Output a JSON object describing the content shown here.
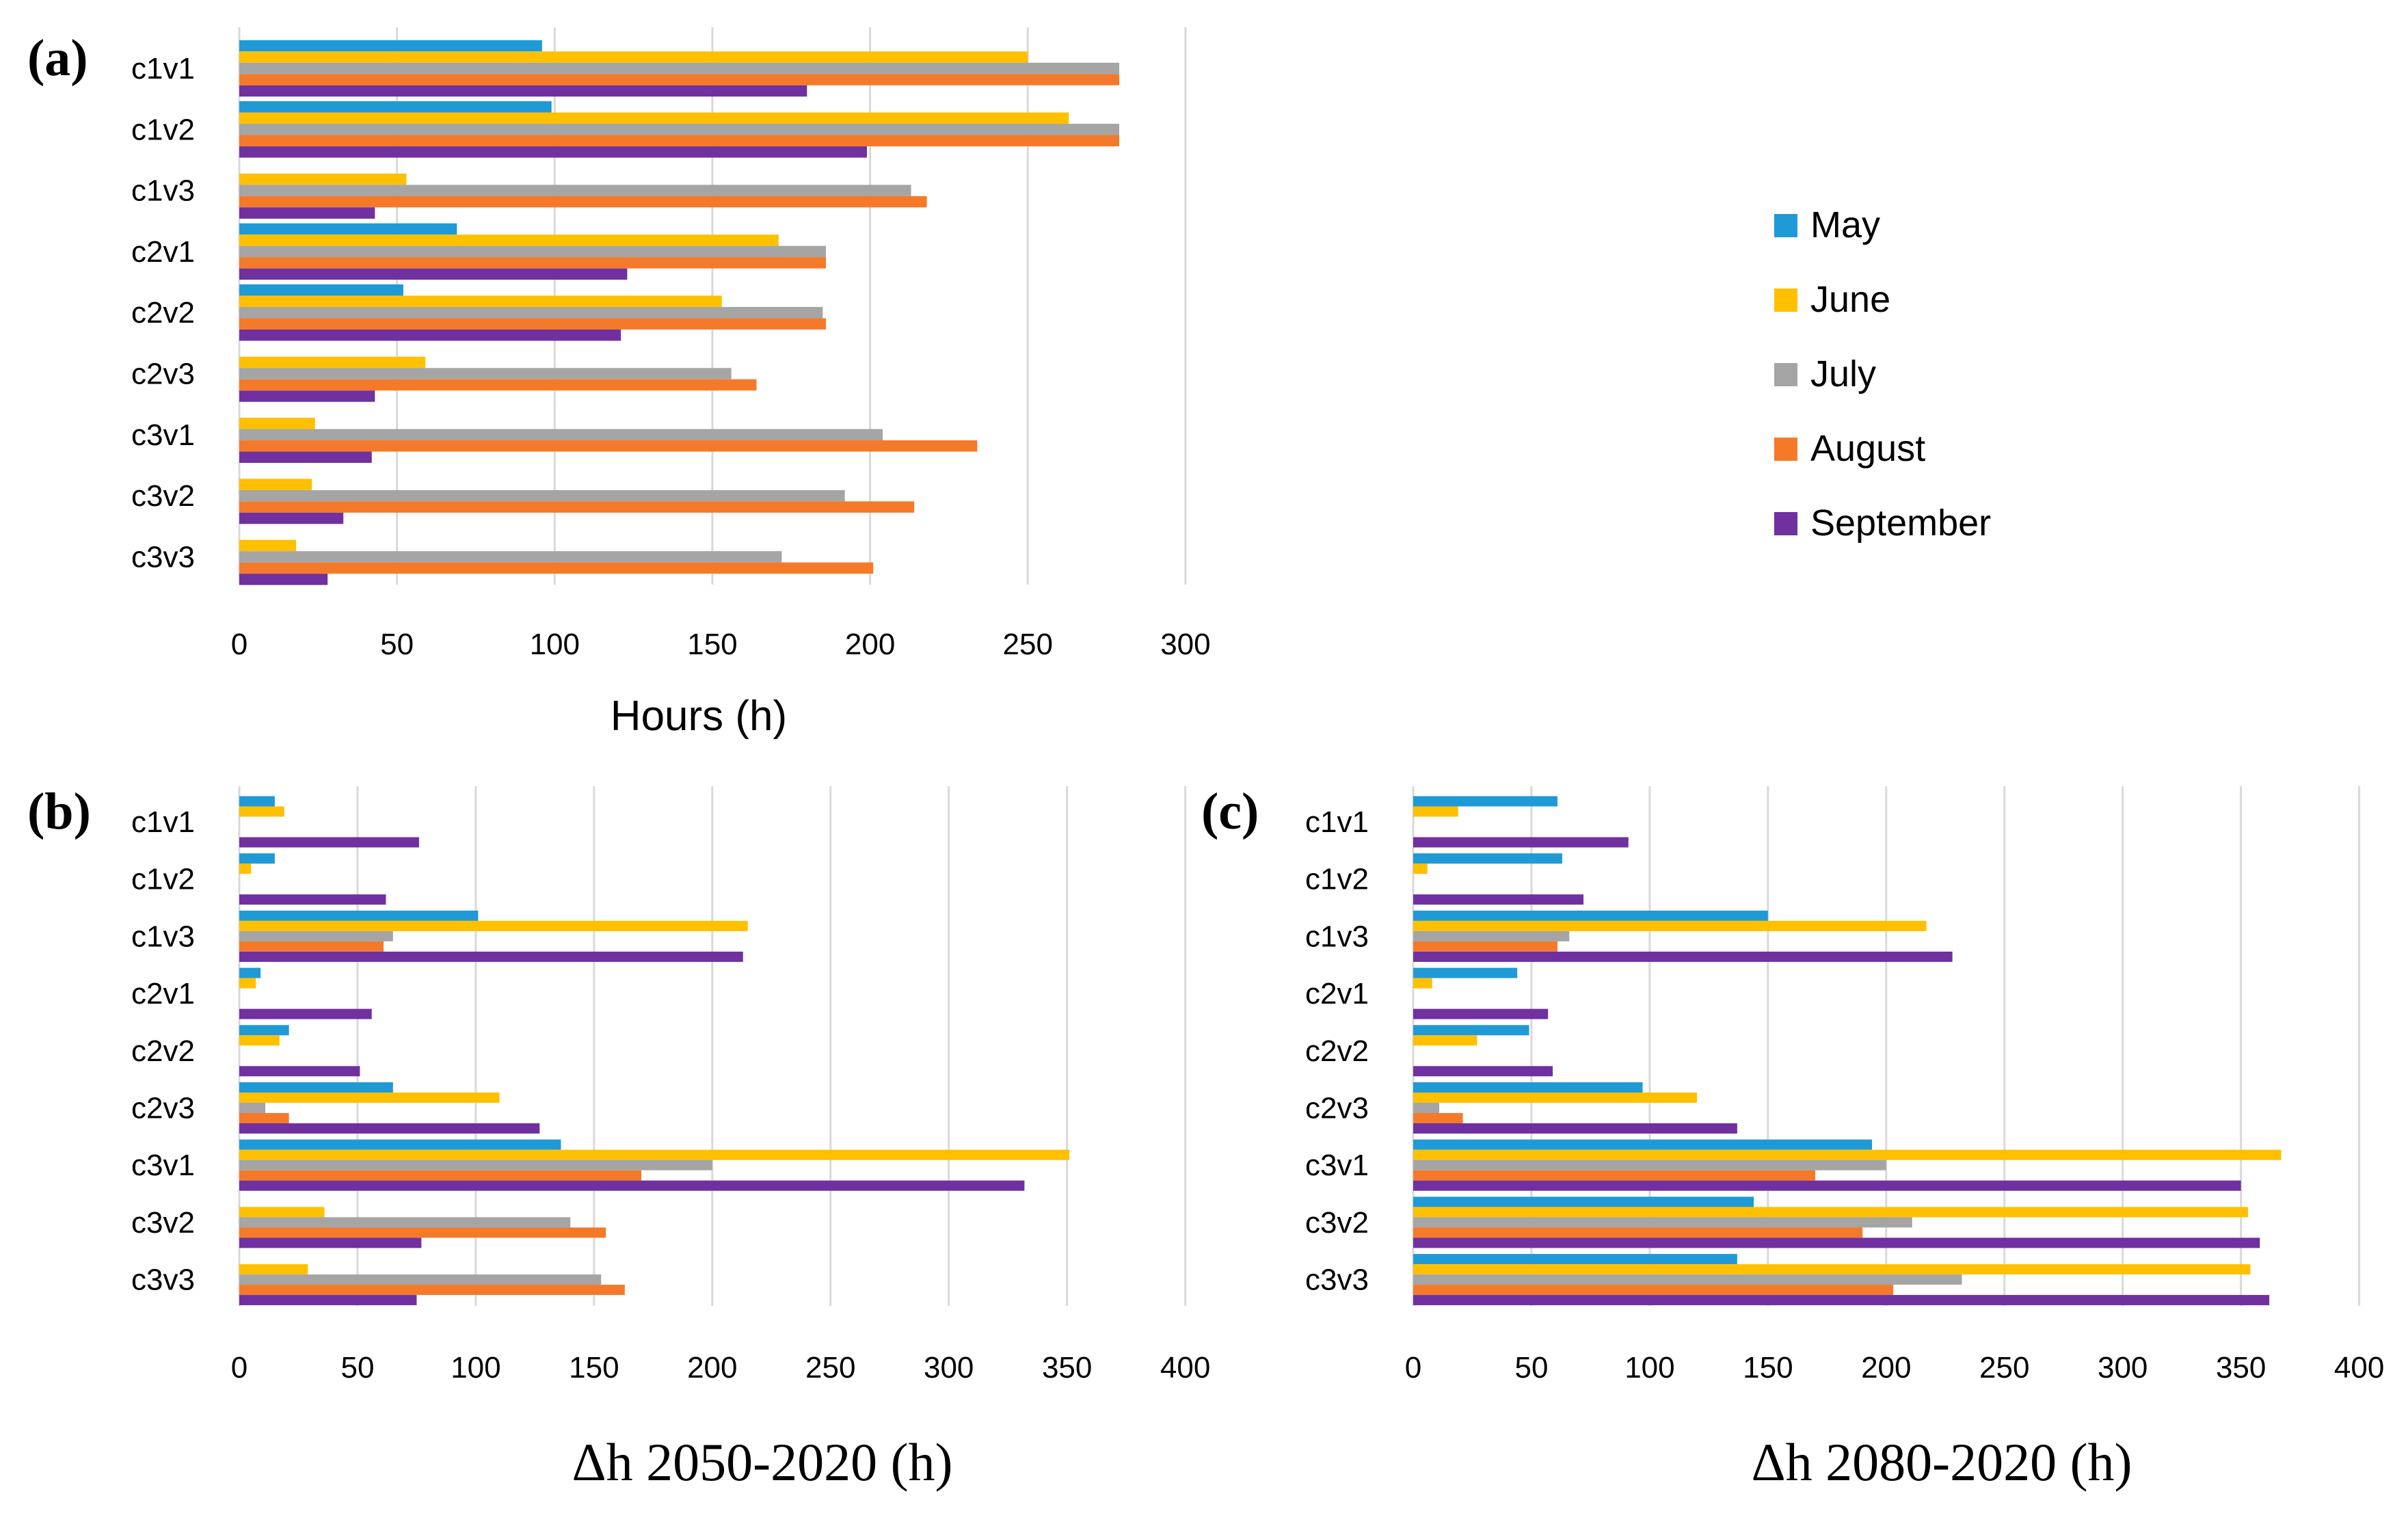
{
  "colors": {
    "May": "#1f9ad6",
    "June": "#ffc000",
    "July": "#a5a5a5",
    "August": "#f47a2a",
    "September": "#7030a0",
    "grid": "#d9d9d9"
  },
  "legend": {
    "items": [
      {
        "name": "May",
        "color": "#1f9ad6"
      },
      {
        "name": "June",
        "color": "#ffc000"
      },
      {
        "name": "July",
        "color": "#a5a5a5"
      },
      {
        "name": "August",
        "color": "#f47a2a"
      },
      {
        "name": "September",
        "color": "#7030a0"
      }
    ]
  },
  "chart_data": [
    {
      "type": "bar",
      "orientation": "horizontal",
      "panel": "(a)",
      "xlabel": "Hours (h)",
      "xlim": [
        0,
        300
      ],
      "xticks": [
        0,
        50,
        100,
        150,
        200,
        250,
        300
      ],
      "categories": [
        "c1v1",
        "c1v2",
        "c1v3",
        "c2v1",
        "c2v2",
        "c2v3",
        "c3v1",
        "c3v2",
        "c3v3"
      ],
      "series": [
        {
          "name": "May",
          "values": [
            96,
            99,
            0,
            69,
            52,
            0,
            0,
            0,
            0
          ]
        },
        {
          "name": "June",
          "values": [
            250,
            263,
            53,
            171,
            153,
            59,
            24,
            23,
            18
          ]
        },
        {
          "name": "July",
          "values": [
            279,
            279,
            213,
            186,
            185,
            156,
            204,
            192,
            172
          ]
        },
        {
          "name": "August",
          "values": [
            279,
            279,
            218,
            186,
            186,
            164,
            234,
            214,
            201
          ]
        },
        {
          "name": "September",
          "values": [
            180,
            199,
            43,
            123,
            121,
            43,
            42,
            33,
            28
          ]
        }
      ]
    },
    {
      "type": "bar",
      "orientation": "horizontal",
      "panel": "(b)",
      "xlabel": "Δh 2050-2020 (h)",
      "xlim": [
        0,
        400
      ],
      "xticks": [
        0,
        50,
        100,
        150,
        200,
        250,
        300,
        350,
        400
      ],
      "categories": [
        "c1v1",
        "c1v2",
        "c1v3",
        "c2v1",
        "c2v2",
        "c2v3",
        "c3v1",
        "c3v2",
        "c3v3"
      ],
      "series": [
        {
          "name": "May",
          "values": [
            15,
            15,
            101,
            9,
            21,
            65,
            136,
            0,
            0
          ]
        },
        {
          "name": "June",
          "values": [
            19,
            5,
            215,
            7,
            17,
            110,
            351,
            36,
            29
          ]
        },
        {
          "name": "July",
          "values": [
            0,
            0,
            65,
            0,
            0,
            11,
            200,
            140,
            153
          ]
        },
        {
          "name": "August",
          "values": [
            0,
            0,
            61,
            0,
            0,
            21,
            170,
            155,
            163
          ]
        },
        {
          "name": "September",
          "values": [
            76,
            62,
            213,
            56,
            51,
            127,
            332,
            77,
            75
          ]
        }
      ]
    },
    {
      "type": "bar",
      "orientation": "horizontal",
      "panel": "(c)",
      "xlabel": "Δh 2080-2020 (h)",
      "xlim": [
        0,
        400
      ],
      "xticks": [
        0,
        50,
        100,
        150,
        200,
        250,
        300,
        350,
        400
      ],
      "categories": [
        "c1v1",
        "c1v2",
        "c1v3",
        "c2v1",
        "c2v2",
        "c2v3",
        "c3v1",
        "c3v2",
        "c3v3"
      ],
      "series": [
        {
          "name": "May",
          "values": [
            61,
            63,
            150,
            44,
            49,
            97,
            194,
            144,
            137
          ]
        },
        {
          "name": "June",
          "values": [
            19,
            6,
            217,
            8,
            27,
            120,
            367,
            353,
            354
          ]
        },
        {
          "name": "July",
          "values": [
            0,
            0,
            66,
            0,
            0,
            11,
            200,
            211,
            232
          ]
        },
        {
          "name": "August",
          "values": [
            0,
            0,
            61,
            0,
            0,
            21,
            170,
            190,
            203
          ]
        },
        {
          "name": "September",
          "values": [
            91,
            72,
            228,
            57,
            59,
            137,
            350,
            358,
            362
          ]
        }
      ]
    }
  ]
}
